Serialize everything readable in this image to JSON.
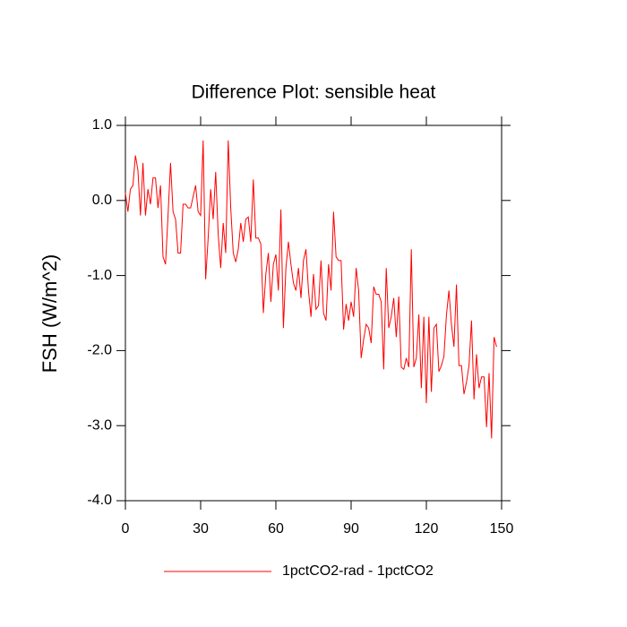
{
  "chart_data": {
    "type": "line",
    "title": "Difference Plot: sensible heat",
    "y_label": "FSH  (W/m^2)",
    "x": [
      0,
      1,
      2,
      3,
      4,
      5,
      6,
      7,
      8,
      9,
      10,
      11,
      12,
      13,
      14,
      15,
      16,
      17,
      18,
      19,
      20,
      21,
      22,
      23,
      24,
      25,
      26,
      27,
      28,
      29,
      30,
      31,
      32,
      33,
      34,
      35,
      36,
      37,
      38,
      39,
      40,
      41,
      42,
      43,
      44,
      45,
      46,
      47,
      48,
      49,
      50,
      51,
      52,
      53,
      54,
      55,
      56,
      57,
      58,
      59,
      60,
      61,
      62,
      63,
      64,
      65,
      66,
      67,
      68,
      69,
      70,
      71,
      72,
      73,
      74,
      75,
      76,
      77,
      78,
      79,
      80,
      81,
      82,
      83,
      84,
      85,
      86,
      87,
      88,
      89,
      90,
      91,
      92,
      93,
      94,
      95,
      96,
      97,
      98,
      99,
      100,
      101,
      102,
      103,
      104,
      105,
      106,
      107,
      108,
      109,
      110,
      111,
      112,
      113,
      114,
      115,
      116,
      117,
      118,
      119,
      120,
      121,
      122,
      123,
      124,
      125,
      126,
      127,
      128,
      129,
      130,
      131,
      132,
      133,
      134,
      135,
      136,
      137,
      138,
      139,
      140,
      141,
      142,
      143,
      144,
      145,
      146,
      147,
      148
    ],
    "series": [
      {
        "name": "1pctCO2-rad - 1pctCO2",
        "color": "#ff0000",
        "values": [
          0.1,
          -0.15,
          0.15,
          0.2,
          0.6,
          0.4,
          -0.2,
          0.5,
          -0.2,
          0.15,
          -0.05,
          0.3,
          0.3,
          -0.1,
          0.2,
          -0.75,
          -0.85,
          -0.2,
          0.5,
          -0.15,
          -0.25,
          -0.7,
          -0.7,
          -0.05,
          -0.05,
          -0.1,
          -0.1,
          0.05,
          0.2,
          -0.15,
          -0.2,
          0.8,
          -1.05,
          -0.5,
          0.15,
          -0.25,
          0.38,
          -0.45,
          -0.9,
          -0.3,
          -0.7,
          0.8,
          -0.1,
          -0.7,
          -0.82,
          -0.65,
          -0.3,
          -0.55,
          -0.25,
          -0.22,
          -0.55,
          0.28,
          -0.5,
          -0.5,
          -0.58,
          -1.5,
          -0.98,
          -0.7,
          -1.35,
          -0.85,
          -0.72,
          -1.2,
          -0.12,
          -1.7,
          -0.9,
          -0.55,
          -0.85,
          -1.1,
          -1.2,
          -0.9,
          -1.3,
          -0.8,
          -0.65,
          -1.2,
          -1.55,
          -0.98,
          -1.45,
          -1.4,
          -0.8,
          -1.5,
          -1.6,
          -0.85,
          -1.2,
          -0.15,
          -0.75,
          -0.8,
          -0.8,
          -1.72,
          -1.38,
          -1.6,
          -1.35,
          -1.55,
          -0.9,
          -1.2,
          -2.1,
          -1.85,
          -1.65,
          -1.7,
          -1.9,
          -1.15,
          -1.25,
          -1.25,
          -1.35,
          -2.25,
          -0.9,
          -1.7,
          -1.55,
          -1.3,
          -1.82,
          -1.28,
          -2.22,
          -2.25,
          -2.1,
          -2.22,
          -0.65,
          -2.22,
          -2.1,
          -1.52,
          -2.5,
          -1.55,
          -2.7,
          -1.55,
          -2.55,
          -1.7,
          -1.65,
          -2.28,
          -2.2,
          -2.08,
          -1.53,
          -1.2,
          -1.65,
          -1.95,
          -1.12,
          -2.2,
          -2.2,
          -2.58,
          -2.42,
          -2.2,
          -1.6,
          -2.65,
          -2.05,
          -2.5,
          -2.35,
          -2.35,
          -3.02,
          -2.3,
          -3.17,
          -1.82,
          -1.95
        ]
      }
    ],
    "xlim": [
      0,
      150
    ],
    "xticks": [
      0,
      30,
      60,
      90,
      120,
      150
    ],
    "ylim": [
      -4,
      1
    ],
    "yticks": [
      {
        "value": -4,
        "label": "-4.0"
      },
      {
        "value": -3,
        "label": "-3.0"
      },
      {
        "value": -2,
        "label": "-2.0"
      },
      {
        "value": -1,
        "label": "-1.0"
      },
      {
        "value": 0,
        "label": "0.0"
      },
      {
        "value": 1,
        "label": "1.0"
      }
    ],
    "legend": "bottom"
  }
}
